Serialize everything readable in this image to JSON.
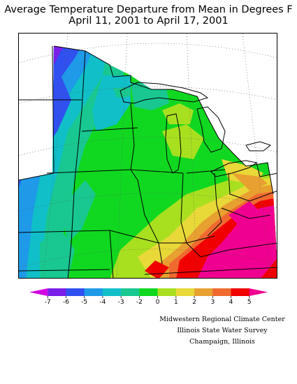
{
  "title": {
    "line1": "Average Temperature Departure from Mean in Degrees F",
    "line2": "April 11, 2001  to April 17, 2001"
  },
  "legend": {
    "ticks": [
      "-7",
      "-6",
      "-5",
      "-4",
      "-3",
      "-2",
      "0",
      "1",
      "2",
      "3",
      "4",
      "5"
    ],
    "colors": [
      "#d000e0",
      "#7a1ee8",
      "#3050f0",
      "#1e9ae8",
      "#10bfc8",
      "#18c890",
      "#10d820",
      "#a8e020",
      "#e8d838",
      "#e8a030",
      "#f06a30",
      "#f00000",
      "#f00090"
    ]
  },
  "credit": {
    "line1": "Midwestern Regional Climate Center",
    "line2": "Illinois State Water Survey",
    "line3": "Champaign, Illinois"
  }
}
